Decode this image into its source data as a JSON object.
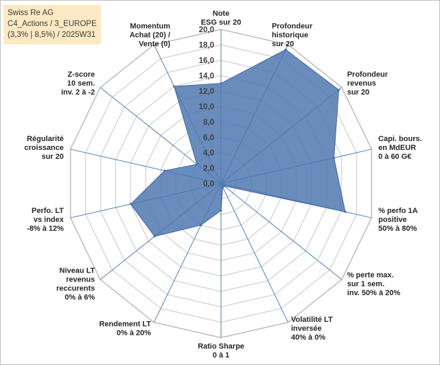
{
  "title": {
    "line1": "Swiss Re AG",
    "line2": "C4_Actions / 3_EUROPE",
    "line3": "(3,3% | 8,5%) / 2025W31"
  },
  "colors": {
    "fill": "#4f78b0",
    "stroke": "#3f68a6",
    "grid": "#d9d9d9",
    "spoke": "#4a7ec4"
  },
  "chart_data": {
    "type": "radar",
    "rmin": 0,
    "rmax": 20,
    "tick_step": 2,
    "tick_labels": [
      "0,0",
      "2,0",
      "4,0",
      "6,0",
      "8,0",
      "10,0",
      "12,0",
      "14,0",
      "16,0",
      "18,0",
      "20,0"
    ],
    "axes": [
      {
        "label": [
          "Note",
          "ESG sur 20"
        ],
        "value": 13.0
      },
      {
        "label": [
          "Profondeur",
          "historique",
          "sur 20"
        ],
        "value": 19.3
      },
      {
        "label": [
          "Profondeur",
          "revenus",
          "sur 20"
        ],
        "value": 19.5
      },
      {
        "label": [
          "Capi. bours.",
          "en MdEUR",
          "0 à 60 G€"
        ],
        "value": 15.0
      },
      {
        "label": [
          "% perfo 1A",
          "positive",
          "50% à 80%"
        ],
        "value": 16.5
      },
      {
        "label": [
          "% perte max.",
          "sur 1 sem.",
          "inv. 50% à 20%"
        ],
        "value": 0.5
      },
      {
        "label": [
          "Volatilité LT",
          "inversée",
          "40% à 0%"
        ],
        "value": 0.5
      },
      {
        "label": [
          "Ratio Sharpe",
          "0 à 1"
        ],
        "value": 3.5
      },
      {
        "label": [
          "Rendement LT",
          "0% à 20%"
        ],
        "value": 6.0
      },
      {
        "label": [
          "Niveau LT",
          "revenus",
          "reccurents",
          "0% à 6%"
        ],
        "value": 11.0
      },
      {
        "label": [
          "Perfo. LT",
          "vs index",
          "-8% à 12%"
        ],
        "value": 12.0
      },
      {
        "label": [
          "Régularité",
          "croissance",
          "sur 20"
        ],
        "value": 7.5
      },
      {
        "label": [
          "Z-score",
          "10 sem.",
          "inv. 2 à -2"
        ],
        "value": 4.0
      },
      {
        "label": [
          "Momentum",
          "Achat (20) /",
          "Vente (0)"
        ],
        "value": 14.0
      }
    ]
  }
}
